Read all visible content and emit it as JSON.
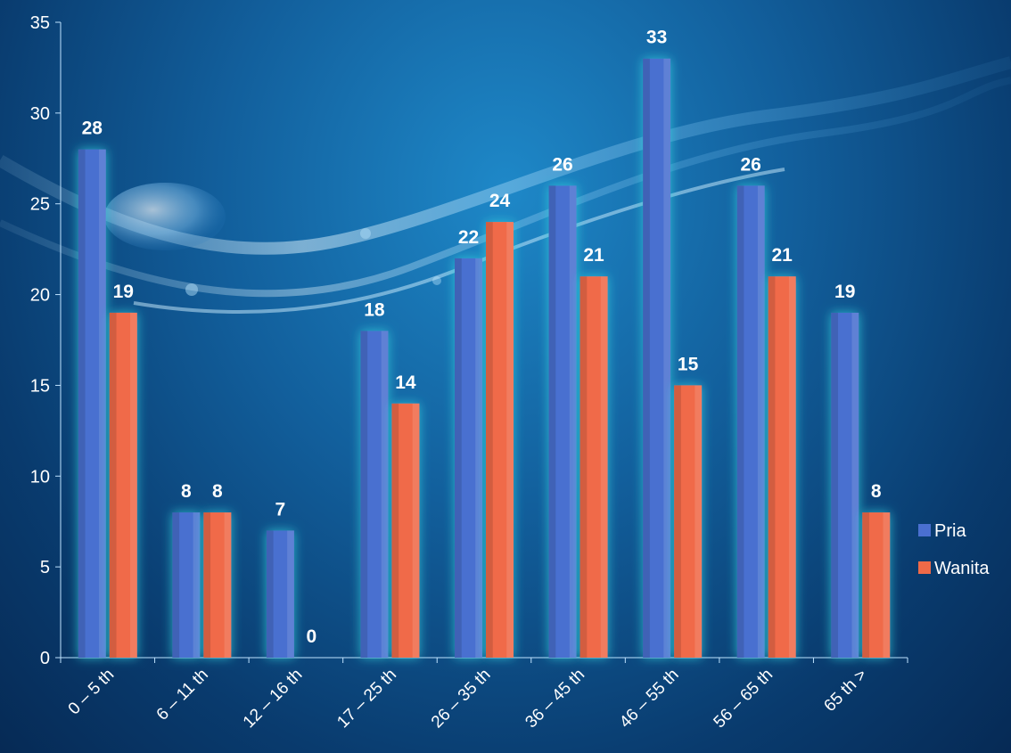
{
  "chart_data": {
    "type": "bar",
    "categories": [
      "0 – 5 th",
      "6 – 11 th",
      "12 – 16 th",
      "17 – 25 th",
      "26 – 35 th",
      "36 – 45 th",
      "46 – 55 th",
      "56 – 65 th",
      "65 th >"
    ],
    "series": [
      {
        "name": "Pria",
        "values": [
          28,
          8,
          7,
          18,
          22,
          26,
          33,
          26,
          19
        ],
        "color": "#4a6fd0"
      },
      {
        "name": "Wanita",
        "values": [
          19,
          8,
          0,
          14,
          24,
          21,
          15,
          21,
          8
        ],
        "color": "#f06a48"
      }
    ],
    "ylim": [
      0,
      35
    ],
    "yticks": [
      "0",
      "5",
      "10",
      "15",
      "20",
      "25",
      "30",
      "35"
    ],
    "grid": false,
    "legend": "right",
    "data_labels": true
  },
  "theme": {
    "background": "#0d4f8c",
    "glow": "#33d6e0",
    "text": "#ffffff"
  }
}
